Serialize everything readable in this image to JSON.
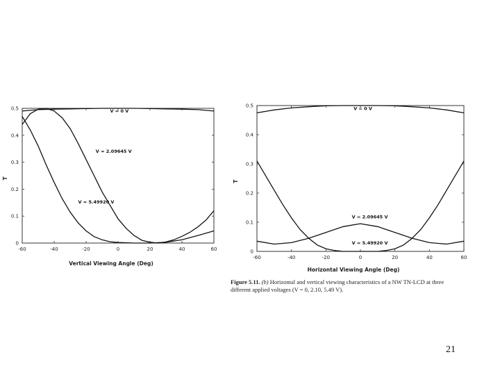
{
  "caption": {
    "figure": "Figure 5.11.",
    "part": "(b)",
    "text": "Horizontal and vertical viewing characteristics of a NW TN-LCD at three different applied voltages (V = 0, 2.10, 5.49 V)."
  },
  "page_number": "21",
  "chart_data": [
    {
      "type": "line",
      "xlabel": "Vertical Viewing Angle (Deg)",
      "ylabel": "T",
      "xlim": [
        -60,
        60
      ],
      "ylim": [
        0,
        0.5
      ],
      "xticks": [
        "-60",
        "-40",
        "-20",
        "0",
        "20",
        "40",
        "60"
      ],
      "yticks": [
        "0",
        "0.1",
        "0.2",
        "0.3",
        "0.4",
        "0.5"
      ],
      "series": [
        {
          "name": "V = 0 V",
          "points": [
            [
              -60,
              0.49
            ],
            [
              -50,
              0.495
            ],
            [
              -40,
              0.497
            ],
            [
              -30,
              0.498
            ],
            [
              -20,
              0.499
            ],
            [
              -10,
              0.5
            ],
            [
              0,
              0.5
            ],
            [
              10,
              0.5
            ],
            [
              20,
              0.499
            ],
            [
              30,
              0.498
            ],
            [
              40,
              0.497
            ],
            [
              50,
              0.495
            ],
            [
              60,
              0.49
            ]
          ]
        },
        {
          "name": "V = 2.09645 V",
          "points": [
            [
              -60,
              0.44
            ],
            [
              -55,
              0.48
            ],
            [
              -50,
              0.497
            ],
            [
              -45,
              0.5
            ],
            [
              -40,
              0.49
            ],
            [
              -35,
              0.465
            ],
            [
              -30,
              0.425
            ],
            [
              -25,
              0.37
            ],
            [
              -20,
              0.31
            ],
            [
              -15,
              0.25
            ],
            [
              -10,
              0.19
            ],
            [
              -5,
              0.14
            ],
            [
              0,
              0.09
            ],
            [
              5,
              0.055
            ],
            [
              10,
              0.028
            ],
            [
              15,
              0.01
            ],
            [
              20,
              0.003
            ],
            [
              25,
              0.0
            ],
            [
              30,
              0.004
            ],
            [
              35,
              0.012
            ],
            [
              40,
              0.025
            ],
            [
              45,
              0.04
            ],
            [
              50,
              0.06
            ],
            [
              55,
              0.085
            ],
            [
              60,
              0.12
            ]
          ]
        },
        {
          "name": "V = 5.49920 V",
          "points": [
            [
              -60,
              0.47
            ],
            [
              -55,
              0.42
            ],
            [
              -50,
              0.36
            ],
            [
              -45,
              0.29
            ],
            [
              -40,
              0.225
            ],
            [
              -35,
              0.165
            ],
            [
              -30,
              0.115
            ],
            [
              -25,
              0.075
            ],
            [
              -20,
              0.045
            ],
            [
              -15,
              0.024
            ],
            [
              -10,
              0.012
            ],
            [
              -5,
              0.005
            ],
            [
              0,
              0.002
            ],
            [
              10,
              0.0
            ],
            [
              20,
              0.0
            ],
            [
              30,
              0.003
            ],
            [
              40,
              0.012
            ],
            [
              50,
              0.028
            ],
            [
              60,
              0.045
            ]
          ]
        }
      ]
    },
    {
      "type": "line",
      "xlabel": "Horizontal Viewing Angle (Deg)",
      "ylabel": "T",
      "xlim": [
        -60,
        60
      ],
      "ylim": [
        0,
        0.5
      ],
      "xticks": [
        "-60",
        "-40",
        "-20",
        "0",
        "20",
        "40",
        "60"
      ],
      "yticks": [
        "0",
        "0.1",
        "0.2",
        "0.3",
        "0.4",
        "0.5"
      ],
      "series": [
        {
          "name": "V = 0 V",
          "points": [
            [
              -60,
              0.475
            ],
            [
              -50,
              0.485
            ],
            [
              -40,
              0.492
            ],
            [
              -30,
              0.496
            ],
            [
              -20,
              0.499
            ],
            [
              -10,
              0.5
            ],
            [
              0,
              0.5
            ],
            [
              10,
              0.5
            ],
            [
              20,
              0.499
            ],
            [
              30,
              0.496
            ],
            [
              40,
              0.492
            ],
            [
              50,
              0.485
            ],
            [
              60,
              0.475
            ]
          ]
        },
        {
          "name": "V = 2.09645 V",
          "points": [
            [
              -60,
              0.035
            ],
            [
              -50,
              0.025
            ],
            [
              -40,
              0.03
            ],
            [
              -30,
              0.045
            ],
            [
              -20,
              0.065
            ],
            [
              -10,
              0.085
            ],
            [
              0,
              0.095
            ],
            [
              10,
              0.085
            ],
            [
              20,
              0.065
            ],
            [
              30,
              0.045
            ],
            [
              40,
              0.03
            ],
            [
              50,
              0.025
            ],
            [
              60,
              0.035
            ]
          ]
        },
        {
          "name": "V = 5.49920 V",
          "points": [
            [
              -60,
              0.31
            ],
            [
              -55,
              0.26
            ],
            [
              -50,
              0.21
            ],
            [
              -45,
              0.16
            ],
            [
              -40,
              0.115
            ],
            [
              -35,
              0.075
            ],
            [
              -30,
              0.045
            ],
            [
              -25,
              0.022
            ],
            [
              -20,
              0.009
            ],
            [
              -15,
              0.003
            ],
            [
              -10,
              0.0
            ],
            [
              0,
              0.0
            ],
            [
              10,
              0.0
            ],
            [
              15,
              0.003
            ],
            [
              20,
              0.009
            ],
            [
              25,
              0.022
            ],
            [
              30,
              0.045
            ],
            [
              35,
              0.075
            ],
            [
              40,
              0.115
            ],
            [
              45,
              0.16
            ],
            [
              50,
              0.21
            ],
            [
              55,
              0.26
            ],
            [
              60,
              0.31
            ]
          ]
        }
      ]
    }
  ]
}
